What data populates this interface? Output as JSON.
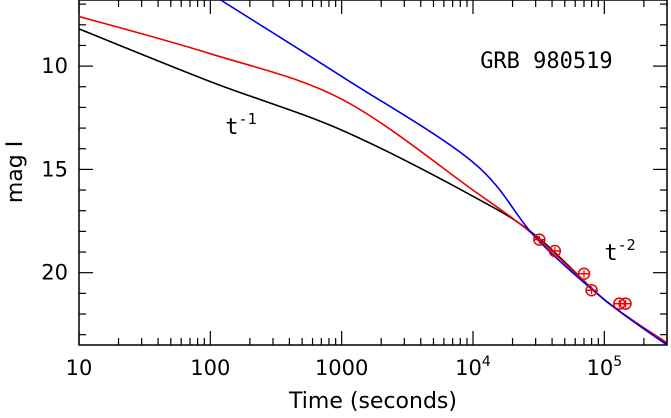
{
  "chart_data": {
    "type": "line",
    "title": "GRB 980519",
    "xlabel": "Time (seconds)",
    "ylabel": "mag I",
    "x_scale": "log",
    "xlim": [
      10,
      300000
    ],
    "ylim": [
      23.5,
      6.8
    ],
    "y_inverted": true,
    "grid": false,
    "x_ticks": [
      {
        "value": 10,
        "label": "10"
      },
      {
        "value": 100,
        "label": "100"
      },
      {
        "value": 1000,
        "label": "1000"
      },
      {
        "value": 10000,
        "label": "10",
        "exp": "4"
      },
      {
        "value": 100000,
        "label": "10",
        "exp": "5"
      }
    ],
    "y_ticks": [
      {
        "value": 10,
        "label": "10"
      },
      {
        "value": 15,
        "label": "15"
      },
      {
        "value": 20,
        "label": "20"
      }
    ],
    "annotations": [
      {
        "text": "GRB 980519",
        "x": 60000,
        "y": 9.7
      },
      {
        "base": "t",
        "exp": "-1",
        "x": 130,
        "y": 12.9
      },
      {
        "base": "t",
        "exp": "-2",
        "x": 100000,
        "y": 19.0
      }
    ],
    "series": [
      {
        "color": "#000000",
        "x": [
          10,
          100,
          1000,
          10000,
          30000,
          100000,
          300000
        ],
        "y": [
          8.2,
          10.75,
          13.1,
          16.3,
          18.2,
          21.3,
          23.45
        ]
      },
      {
        "color": "#ee0000",
        "x": [
          10,
          100,
          1000,
          10000,
          30000,
          100000,
          300000
        ],
        "y": [
          7.6,
          9.4,
          11.6,
          16.0,
          18.25,
          21.3,
          23.4
        ]
      },
      {
        "color": "#0000ee",
        "x": [
          120,
          1000,
          10000,
          30000,
          100000,
          300000
        ],
        "y": [
          6.8,
          10.5,
          14.65,
          18.3,
          21.3,
          23.5
        ]
      }
    ],
    "points": {
      "color": "#ee0000",
      "x": [
        32000,
        42000,
        70000,
        80000,
        130000,
        145000
      ],
      "y": [
        18.4,
        18.95,
        20.05,
        20.85,
        21.5,
        21.5
      ]
    }
  }
}
